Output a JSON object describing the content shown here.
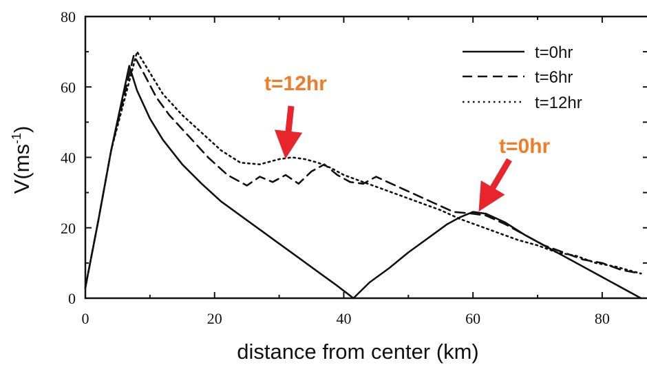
{
  "chart_data": {
    "type": "line",
    "title": "",
    "xlabel": "distance from center (km)",
    "ylabel_main": "V(ms",
    "ylabel_sup": "-1",
    "ylabel_close": ")",
    "xlim": [
      0,
      88
    ],
    "ylim": [
      0,
      80
    ],
    "xticks": [
      0,
      20,
      40,
      60,
      80
    ],
    "yticks": [
      0,
      20,
      40,
      60,
      80
    ],
    "xtick_labels": [
      "0",
      "20",
      "40",
      "60",
      "80"
    ],
    "ytick_labels": [
      "0",
      "20",
      "40",
      "60",
      "80"
    ],
    "legend_position": "top-right",
    "series": [
      {
        "name": "t=0hr",
        "style": "solid",
        "x": [
          0,
          2,
          4,
          6.8,
          8,
          10,
          12,
          15,
          18,
          21,
          24,
          27,
          30,
          33,
          36,
          39,
          41.5,
          44,
          47,
          50,
          53,
          56,
          58,
          60,
          62,
          65,
          68,
          71,
          74,
          77,
          80,
          83,
          86
        ],
        "y": [
          3,
          22,
          42,
          66,
          59,
          51,
          45,
          38,
          32.5,
          27.5,
          23.5,
          19.5,
          15.5,
          11.5,
          7.5,
          3.5,
          0,
          4.5,
          8.5,
          13,
          17,
          21,
          23,
          24.5,
          24,
          21.5,
          18,
          15,
          12,
          9,
          6,
          3,
          0
        ]
      },
      {
        "name": "t=6hr",
        "style": "dashed",
        "x": [
          0,
          2,
          4,
          7.5,
          9,
          11,
          13,
          16,
          19,
          22,
          25,
          27,
          29,
          31,
          33,
          35,
          37,
          39,
          41,
          43,
          45,
          48,
          51,
          54,
          57,
          60,
          62,
          65,
          68,
          71,
          74,
          77,
          80,
          83,
          86
        ],
        "y": [
          3,
          22,
          42,
          69,
          64,
          57,
          52,
          46,
          40,
          35,
          32,
          34.5,
          33,
          35,
          32.5,
          36,
          38,
          35,
          33,
          32.5,
          34.5,
          32,
          29.5,
          27,
          24.5,
          24,
          23.5,
          21,
          18,
          15,
          13,
          11,
          10,
          8,
          7
        ]
      },
      {
        "name": "t=12hr",
        "style": "dotted",
        "x": [
          0,
          2,
          4,
          8,
          10,
          12,
          15,
          18,
          21,
          24,
          27,
          30,
          32,
          34,
          36,
          38,
          40,
          43,
          46,
          49,
          52,
          55,
          58,
          61,
          64,
          67,
          70,
          73,
          76,
          79,
          82,
          86
        ],
        "y": [
          3,
          22,
          42,
          70,
          64,
          58,
          52,
          47,
          42,
          38.5,
          38,
          39.5,
          40,
          39.5,
          38.5,
          37,
          35,
          33,
          31,
          29,
          27,
          25,
          22.5,
          20.5,
          18.5,
          16.5,
          15,
          13,
          12,
          10,
          9,
          7
        ]
      }
    ],
    "annotations": [
      {
        "text": "t=12hr",
        "color": "#f07c28",
        "arrow_color": "#e8242c",
        "target": [
          31,
          40
        ]
      },
      {
        "text": "t=0hr",
        "color": "#f07c28",
        "arrow_color": "#e8242c",
        "target": [
          61,
          25
        ]
      }
    ]
  }
}
